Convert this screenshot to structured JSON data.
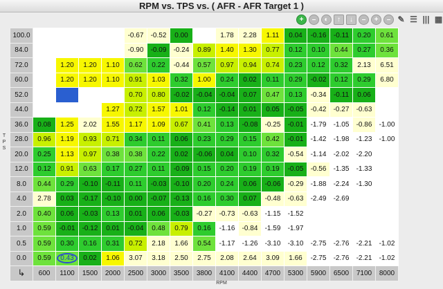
{
  "window": {
    "title": "RPM vs. TPS vs. ( AFR - AFR Target 1 )"
  },
  "axis": {
    "y_label": "TPS",
    "x_label": "RPM"
  },
  "toolbar": [
    {
      "name": "add-icon",
      "glyph": "+",
      "style": "add"
    },
    {
      "name": "remove-icon",
      "glyph": "–",
      "style": ""
    },
    {
      "name": "smooth-icon",
      "glyph": "◐",
      "style": ""
    },
    {
      "name": "move-up-icon",
      "glyph": "↑",
      "style": "sq"
    },
    {
      "name": "move-down-icon",
      "glyph": "↓",
      "style": "sq"
    },
    {
      "name": "zoom-out-icon",
      "glyph": "–",
      "style": ""
    },
    {
      "name": "zoom-in-icon",
      "glyph": "+",
      "style": ""
    },
    {
      "name": "decrease-icon",
      "glyph": "–",
      "style": ""
    },
    {
      "name": "pencil-icon",
      "glyph": "✎",
      "style": "flat"
    },
    {
      "name": "list-view-icon",
      "glyph": "☰",
      "style": "flat"
    },
    {
      "name": "column-view-icon",
      "glyph": "|||",
      "style": "flat"
    },
    {
      "name": "grid-view-icon",
      "glyph": "▦",
      "style": "flat"
    }
  ],
  "columns": [
    "600",
    "1100",
    "1500",
    "2000",
    "2500",
    "3000",
    "3500",
    "3800",
    "4100",
    "4400",
    "4700",
    "5300",
    "5900",
    "6500",
    "7100",
    "8000"
  ],
  "rows": [
    {
      "tps": "100.0",
      "values": [
        "",
        "",
        "",
        "",
        "-0.67",
        "-0.52",
        "0.00",
        "",
        "1.78",
        "2.28",
        "1.11",
        "0.04",
        "-0.16",
        "-0.11",
        "0.20",
        "0.61"
      ]
    },
    {
      "tps": "84.0",
      "values": [
        "",
        "",
        "",
        "",
        "-0.90",
        "-0.09",
        "-0.24",
        "0.89",
        "1.40",
        "1.30",
        "0.77",
        "0.12",
        "0.10",
        "0.44",
        "0.27",
        "0.36"
      ]
    },
    {
      "tps": "72.0",
      "values": [
        "",
        "1.20",
        "1.20",
        "1.10",
        "0.62",
        "0.22",
        "-0.44",
        "0.57",
        "0.97",
        "0.94",
        "0.74",
        "0.23",
        "0.12",
        "0.32",
        "2.13",
        "6.51"
      ]
    },
    {
      "tps": "60.0",
      "values": [
        "",
        "1.20",
        "1.20",
        "1.10",
        "0.91",
        "1.03",
        "0.32",
        "1.00",
        "0.24",
        "0.02",
        "0.11",
        "0.29",
        "-0.02",
        "0.12",
        "0.29",
        "6.80"
      ]
    },
    {
      "tps": "52.0",
      "values": [
        "",
        "",
        "",
        "",
        "0.70",
        "0.80",
        "-0.02",
        "-0.04",
        "-0.04",
        "0.07",
        "0.47",
        "0.13",
        "-0.34",
        "-0.11",
        "0.06",
        ""
      ]
    },
    {
      "tps": "44.0",
      "values": [
        "",
        "",
        "",
        "1.27",
        "0.72",
        "1.57",
        "1.01",
        "0.12",
        "-0.14",
        "0.01",
        "0.05",
        "-0.05",
        "-0.42",
        "-0.27",
        "-0.63",
        ""
      ]
    },
    {
      "tps": "36.0",
      "values": [
        "0.08",
        "1.25",
        "2.02",
        "1.55",
        "1.17",
        "1.09",
        "0.67",
        "0.41",
        "0.13",
        "-0.08",
        "-0.25",
        "-0.01",
        "-1.79",
        "-1.05",
        "-0.86",
        "-1.00"
      ]
    },
    {
      "tps": "28.0",
      "values": [
        "0.96",
        "1.19",
        "0.93",
        "0.71",
        "0.34",
        "0.11",
        "0.06",
        "0.23",
        "0.29",
        "0.15",
        "0.42",
        "-0.01",
        "-1.42",
        "-1.98",
        "-1.23",
        "-1.00"
      ]
    },
    {
      "tps": "20.0",
      "values": [
        "0.25",
        "1.13",
        "0.97",
        "0.38",
        "0.38",
        "0.22",
        "0.02",
        "-0.06",
        "0.04",
        "0.10",
        "0.32",
        "-0.54",
        "-1.14",
        "-2.02",
        "-2.20",
        ""
      ]
    },
    {
      "tps": "12.0",
      "values": [
        "0.12",
        "0.91",
        "0.63",
        "0.17",
        "0.27",
        "0.11",
        "-0.09",
        "0.15",
        "0.20",
        "0.19",
        "0.19",
        "-0.05",
        "-0.56",
        "-1.35",
        "-1.33",
        ""
      ]
    },
    {
      "tps": "8.0",
      "values": [
        "0.44",
        "0.29",
        "-0.10",
        "-0.11",
        "0.11",
        "-0.03",
        "-0.10",
        "0.20",
        "0.24",
        "0.06",
        "-0.06",
        "-0.29",
        "-1.88",
        "-2.24",
        "-1.30",
        ""
      ]
    },
    {
      "tps": "4.0",
      "values": [
        "2.78",
        "0.03",
        "-0.17",
        "-0.10",
        "0.00",
        "-0.07",
        "-0.13",
        "0.16",
        "0.30",
        "0.07",
        "-0.48",
        "-0.63",
        "-2.49",
        "-2.69",
        "",
        ""
      ]
    },
    {
      "tps": "2.0",
      "values": [
        "0.40",
        "0.06",
        "-0.03",
        "0.13",
        "0.01",
        "0.06",
        "-0.03",
        "-0.27",
        "-0.73",
        "-0.63",
        "-1.15",
        "-1.52",
        "",
        "",
        "",
        ""
      ]
    },
    {
      "tps": "1.0",
      "values": [
        "0.59",
        "-0.01",
        "-0.12",
        "0.01",
        "-0.04",
        "0.48",
        "0.79",
        "0.16",
        "-1.16",
        "-0.84",
        "-1.59",
        "-1.97",
        "",
        "",
        "",
        ""
      ]
    },
    {
      "tps": "0.5",
      "values": [
        "0.59",
        "0.30",
        "0.16",
        "0.31",
        "0.72",
        "2.18",
        "1.66",
        "0.54",
        "-1.17",
        "-1.26",
        "-3.10",
        "-3.10",
        "-2.75",
        "-2.76",
        "-2.21",
        "-1.02"
      ]
    },
    {
      "tps": "0.0",
      "values": [
        "0.59",
        "0.43",
        "0.02",
        "1.06",
        "3.07",
        "3.18",
        "2.50",
        "2.75",
        "2.08",
        "2.64",
        "3.09",
        "1.66",
        "-2.75",
        "-2.76",
        "-2.21",
        "-1.02"
      ]
    }
  ],
  "selected_cell": {
    "row": 4,
    "col": 1
  },
  "cursor_cell": {
    "row": 15,
    "col": 1
  },
  "colors": {
    "white": "#ffffff",
    "pale_yellow": "#ffffd0",
    "yellow": "#f7f700",
    "yellow_green": "#c8f000",
    "light_green": "#6ee23c",
    "green": "#2ecc2e",
    "dark_green": "#18b018",
    "selection": "#2a5fd0"
  }
}
